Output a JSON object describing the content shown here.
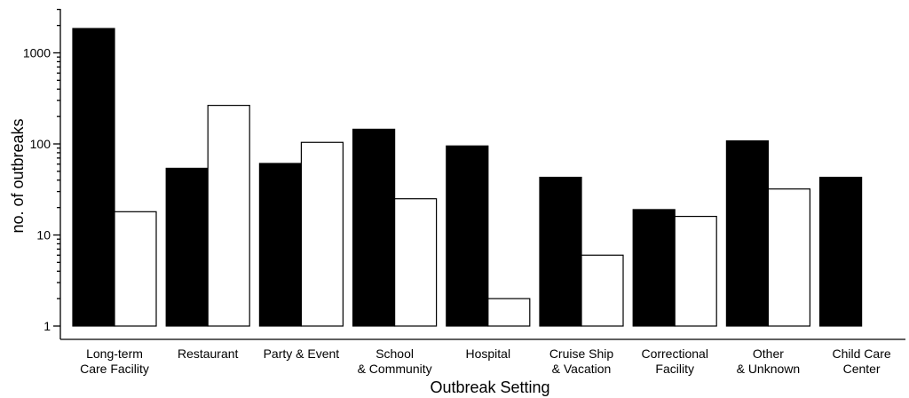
{
  "chart_data": {
    "type": "bar",
    "xlabel": "Outbreak Setting",
    "ylabel": "no. of outbreaks",
    "yscale": "log",
    "ylim": [
      0.8,
      3000
    ],
    "grid": false,
    "legend": "none",
    "yticks": [
      {
        "value": 1,
        "label": "1"
      },
      {
        "value": 10,
        "label": "10"
      },
      {
        "value": 100,
        "label": "100"
      },
      {
        "value": 1000,
        "label": "1000"
      }
    ],
    "categories": [
      [
        "Long-term",
        "Care Facility"
      ],
      [
        "Restaurant"
      ],
      [
        "Party & Event"
      ],
      [
        "School",
        "& Community"
      ],
      [
        "Hospital"
      ],
      [
        "Cruise Ship",
        "& Vacation"
      ],
      [
        "Correctional",
        "Facility"
      ],
      [
        "Other",
        "& Unknown"
      ],
      [
        "Child Care",
        "Center"
      ]
    ],
    "series": [
      {
        "values": [
          1850,
          54,
          61,
          145,
          95,
          43,
          19,
          108,
          43
        ],
        "color": "#000000"
      },
      {
        "values": [
          18,
          265,
          104,
          25,
          2,
          6,
          16,
          32,
          1
        ],
        "color": "#ffffff"
      }
    ]
  }
}
